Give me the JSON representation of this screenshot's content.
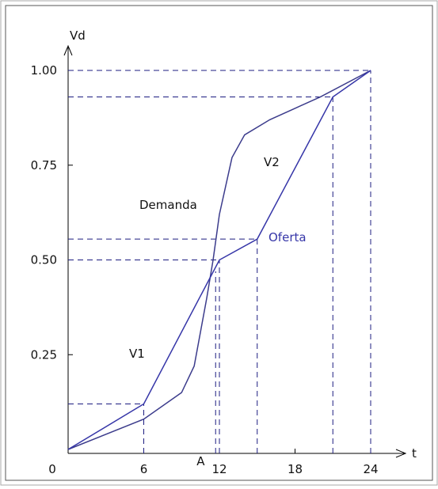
{
  "chart_data": {
    "type": "line",
    "xlabel": "t",
    "ylabel": "Vd",
    "xlim": [
      0,
      24
    ],
    "ylim": [
      0,
      1
    ],
    "xticks": [
      0,
      6,
      12,
      18,
      24
    ],
    "yticks": [
      0.25,
      {
        "value": 0.5,
        "label": "0.50"
      },
      0.75,
      {
        "value": 1,
        "label": "1.00"
      }
    ],
    "series": [
      {
        "name": "Demanda",
        "color": "#3c3c8c",
        "x": [
          0,
          6,
          9,
          10,
          11,
          11.5,
          12,
          13,
          14,
          16,
          18,
          20,
          24
        ],
        "values": [
          0,
          0.08,
          0.15,
          0.22,
          0.4,
          0.5,
          0.62,
          0.77,
          0.83,
          0.87,
          0.9,
          0.93,
          1
        ]
      },
      {
        "name": "Oferta",
        "color": "#3636a8",
        "x": [
          0,
          6,
          12,
          15,
          21,
          24
        ],
        "values": [
          0,
          0.12,
          0.5,
          0.555,
          0.93,
          1
        ]
      }
    ],
    "guides": [
      {
        "x": 6,
        "y": 0.12
      },
      {
        "x": 12,
        "y": 0.5
      },
      {
        "x": 15,
        "y": 0.555
      },
      {
        "x": 21,
        "y": 0.93
      },
      {
        "x": 24,
        "y": 1
      }
    ],
    "marker": {
      "label": "A",
      "x": 11.7,
      "y": 0.47
    },
    "annotations": [
      "V1",
      "V2"
    ]
  }
}
